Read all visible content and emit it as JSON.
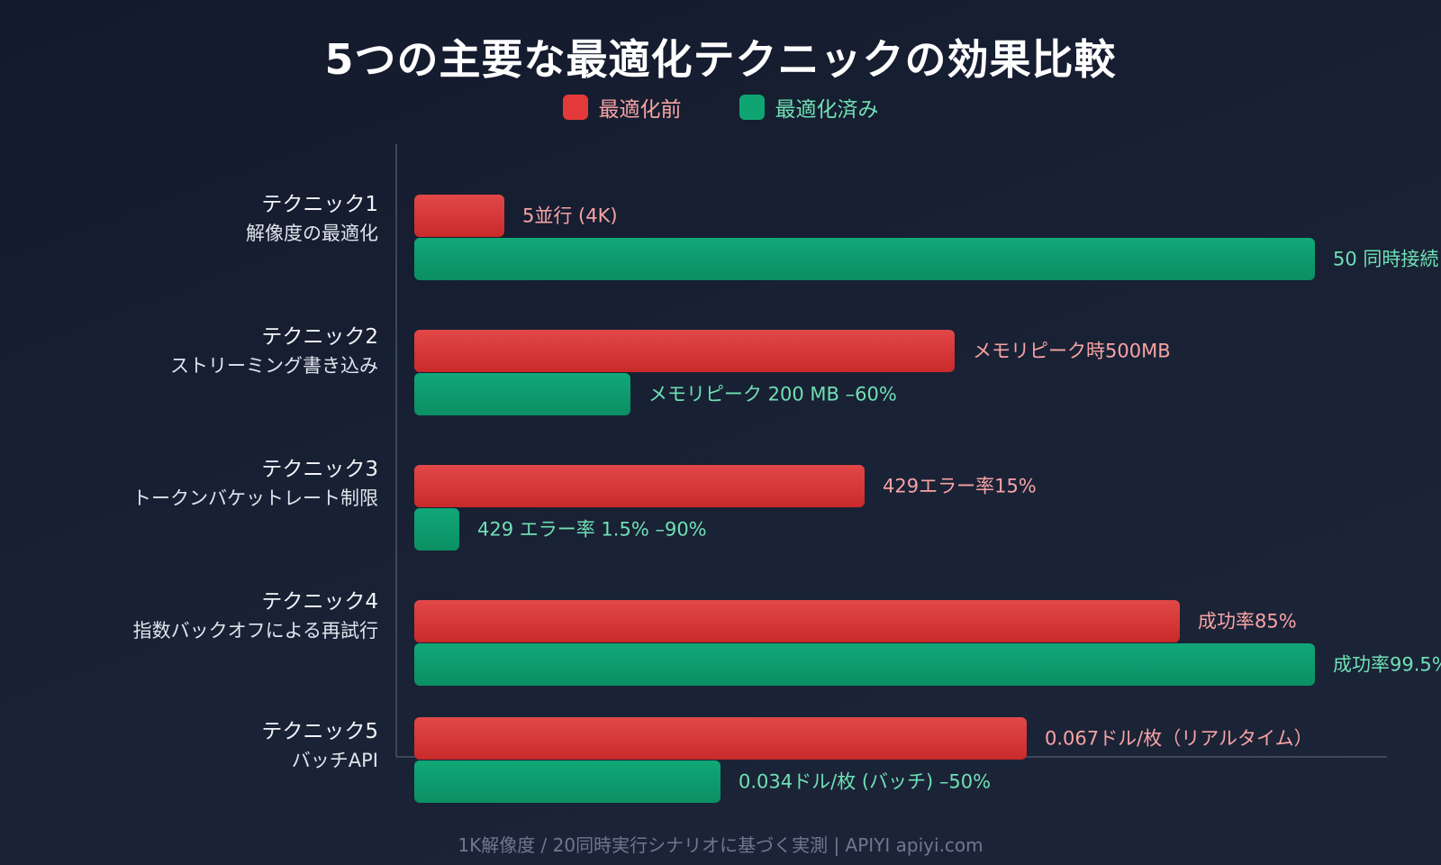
{
  "chart_data": {
    "type": "bar",
    "orientation": "horizontal",
    "title": "5つの主要な最適化テクニックの効果比較",
    "legend": [
      "最適化前",
      "最適化済み"
    ],
    "categories": [
      {
        "name": "テクニック1",
        "desc": "解像度の最適化"
      },
      {
        "name": "テクニック2",
        "desc": "ストリーミング書き込み"
      },
      {
        "name": "テクニック3",
        "desc": "トークンバケットレート制限"
      },
      {
        "name": "テクニック4",
        "desc": "指数バックオフによる再試行"
      },
      {
        "name": "テクニック5",
        "desc": "バッチAPI"
      }
    ],
    "series": [
      {
        "name": "最適化前",
        "color": "#dc3b3b",
        "values": [
          10,
          60,
          50,
          85,
          68
        ],
        "labels": [
          "5並行 (4K)",
          "メモリピーク時500MB",
          "429エラー率15%",
          "成功率85%",
          "0.067ドル/枚（リアルタイム）"
        ]
      },
      {
        "name": "最適化済み",
        "color": "#0e9e6e",
        "values": [
          100,
          24,
          5,
          100,
          34
        ],
        "labels": [
          "50 同時接続",
          "メモリピーク 200 MB –60%",
          "429 エラー率 1.5% –90%",
          "成功率99.5%",
          "0.034ドル/枚 (バッチ) –50%"
        ]
      }
    ],
    "xlim": [
      0,
      100
    ],
    "footer": "1K解像度 / 20同時実行シナリオに基づく実測 | APIYI apiyi.com"
  },
  "colors": {
    "before_label": "#f7a3a3",
    "after_label": "#6fe0b4",
    "axis": "#4a5368"
  }
}
